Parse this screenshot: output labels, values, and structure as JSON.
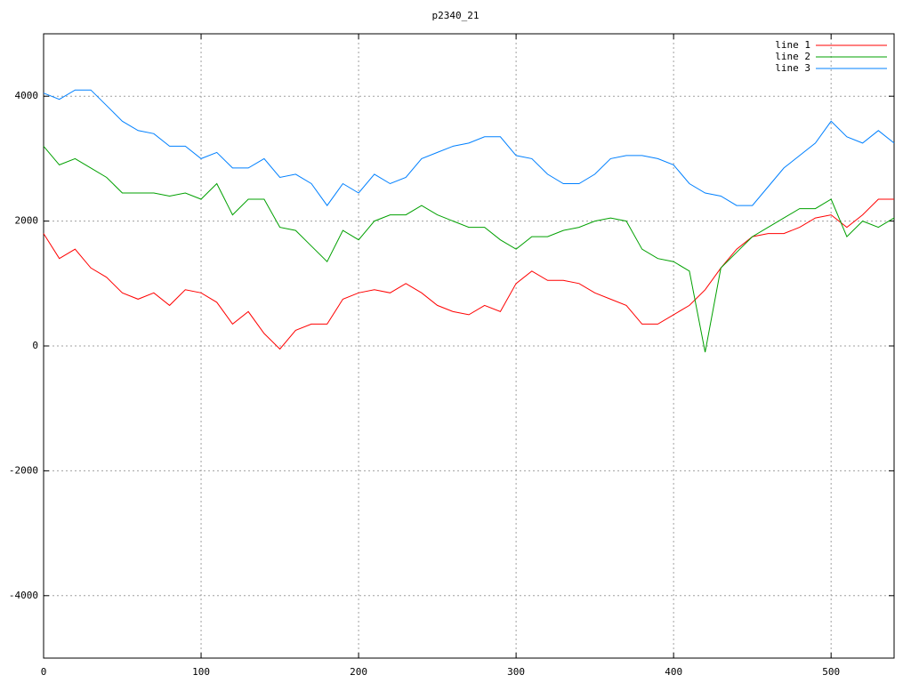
{
  "chart_data": {
    "type": "line",
    "title": "p2340_21",
    "x": [
      0,
      10,
      20,
      30,
      40,
      50,
      60,
      70,
      80,
      90,
      100,
      110,
      120,
      130,
      140,
      150,
      160,
      170,
      180,
      190,
      200,
      210,
      220,
      230,
      240,
      250,
      260,
      270,
      280,
      290,
      300,
      310,
      320,
      330,
      340,
      350,
      360,
      370,
      380,
      390,
      400,
      410,
      420,
      430,
      440,
      450,
      460,
      470,
      480,
      490,
      500,
      510,
      520,
      530,
      540
    ],
    "series": [
      {
        "name": "line 1",
        "color": "#ff0000",
        "values": [
          1800,
          1400,
          1550,
          1250,
          1100,
          850,
          750,
          850,
          650,
          900,
          850,
          700,
          350,
          550,
          200,
          -50,
          250,
          350,
          350,
          750,
          850,
          900,
          850,
          1000,
          850,
          650,
          550,
          500,
          650,
          550,
          1000,
          1200,
          1050,
          1050,
          1000,
          850,
          750,
          650,
          350,
          350,
          500,
          650,
          900,
          1250,
          1550,
          1750,
          1800,
          1800,
          1900,
          2050,
          2100,
          1900,
          2100,
          2350,
          2350
        ]
      },
      {
        "name": "line 2",
        "color": "#00a000",
        "values": [
          3200,
          2900,
          3000,
          2850,
          2700,
          2450,
          2450,
          2450,
          2400,
          2450,
          2350,
          2600,
          2100,
          2350,
          2350,
          1900,
          1850,
          1600,
          1350,
          1850,
          1700,
          2000,
          2100,
          2100,
          2250,
          2100,
          2000,
          1900,
          1900,
          1700,
          1550,
          1750,
          1750,
          1850,
          1900,
          2000,
          2050,
          2000,
          1550,
          1400,
          1350,
          1200,
          -100,
          1250,
          1500,
          1750,
          1900,
          2050,
          2200,
          2200,
          2350,
          1750,
          2000,
          1900,
          2050
        ]
      },
      {
        "name": "line 3",
        "color": "#0080ff",
        "values": [
          4050,
          3950,
          4100,
          4100,
          3850,
          3600,
          3450,
          3400,
          3200,
          3200,
          3000,
          3100,
          2850,
          2850,
          3000,
          2700,
          2750,
          2600,
          2250,
          2600,
          2450,
          2750,
          2600,
          2700,
          3000,
          3100,
          3200,
          3250,
          3350,
          3350,
          3050,
          3000,
          2750,
          2600,
          2600,
          2750,
          3000,
          3050,
          3050,
          3000,
          2900,
          2600,
          2450,
          2400,
          2250,
          2250,
          2550,
          2850,
          3050,
          3250,
          3600,
          3350,
          3250,
          3450,
          3250
        ]
      }
    ],
    "xlim": [
      0,
      540
    ],
    "ylim": [
      -5000,
      5000
    ],
    "xticks": [
      0,
      100,
      200,
      300,
      400,
      500
    ],
    "yticks": [
      -4000,
      -2000,
      0,
      2000,
      4000
    ],
    "grid": true,
    "legend": "top-right"
  }
}
